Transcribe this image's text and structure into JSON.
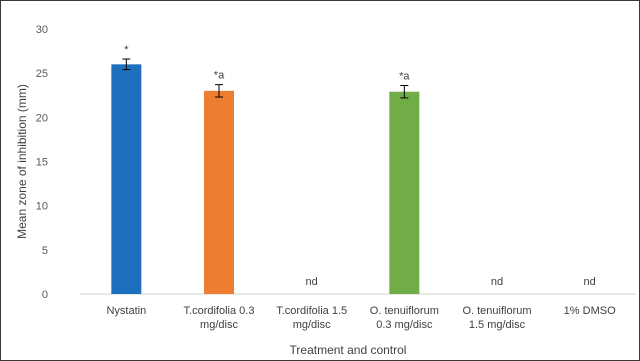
{
  "chart_data": {
    "type": "bar",
    "xlabel": "Treatment and control",
    "ylabel": "Mean zone of inhibition (mm)",
    "ylim": [
      0,
      30
    ],
    "yticks": [
      0,
      5,
      10,
      15,
      20,
      25,
      30
    ],
    "grid": false,
    "categories": [
      [
        "Nystatin"
      ],
      [
        "T.cordifolia 0.3",
        "mg/disc"
      ],
      [
        "T.cordifolia 1.5",
        "mg/disc"
      ],
      [
        "O. tenuiflorum",
        "0.3 mg/disc"
      ],
      [
        "O. tenuiflorum",
        "1.5 mg/disc"
      ],
      [
        "1% DMSO"
      ]
    ],
    "values": [
      26.0,
      23.0,
      null,
      22.9,
      null,
      null
    ],
    "errors": [
      0.6,
      0.7,
      null,
      0.7,
      null,
      null
    ],
    "colors": [
      "#1f6fbf",
      "#ed7d31",
      null,
      "#70ad47",
      null,
      null
    ],
    "annotations": [
      "*",
      "*a",
      "nd",
      "*a",
      "nd",
      "nd"
    ]
  }
}
